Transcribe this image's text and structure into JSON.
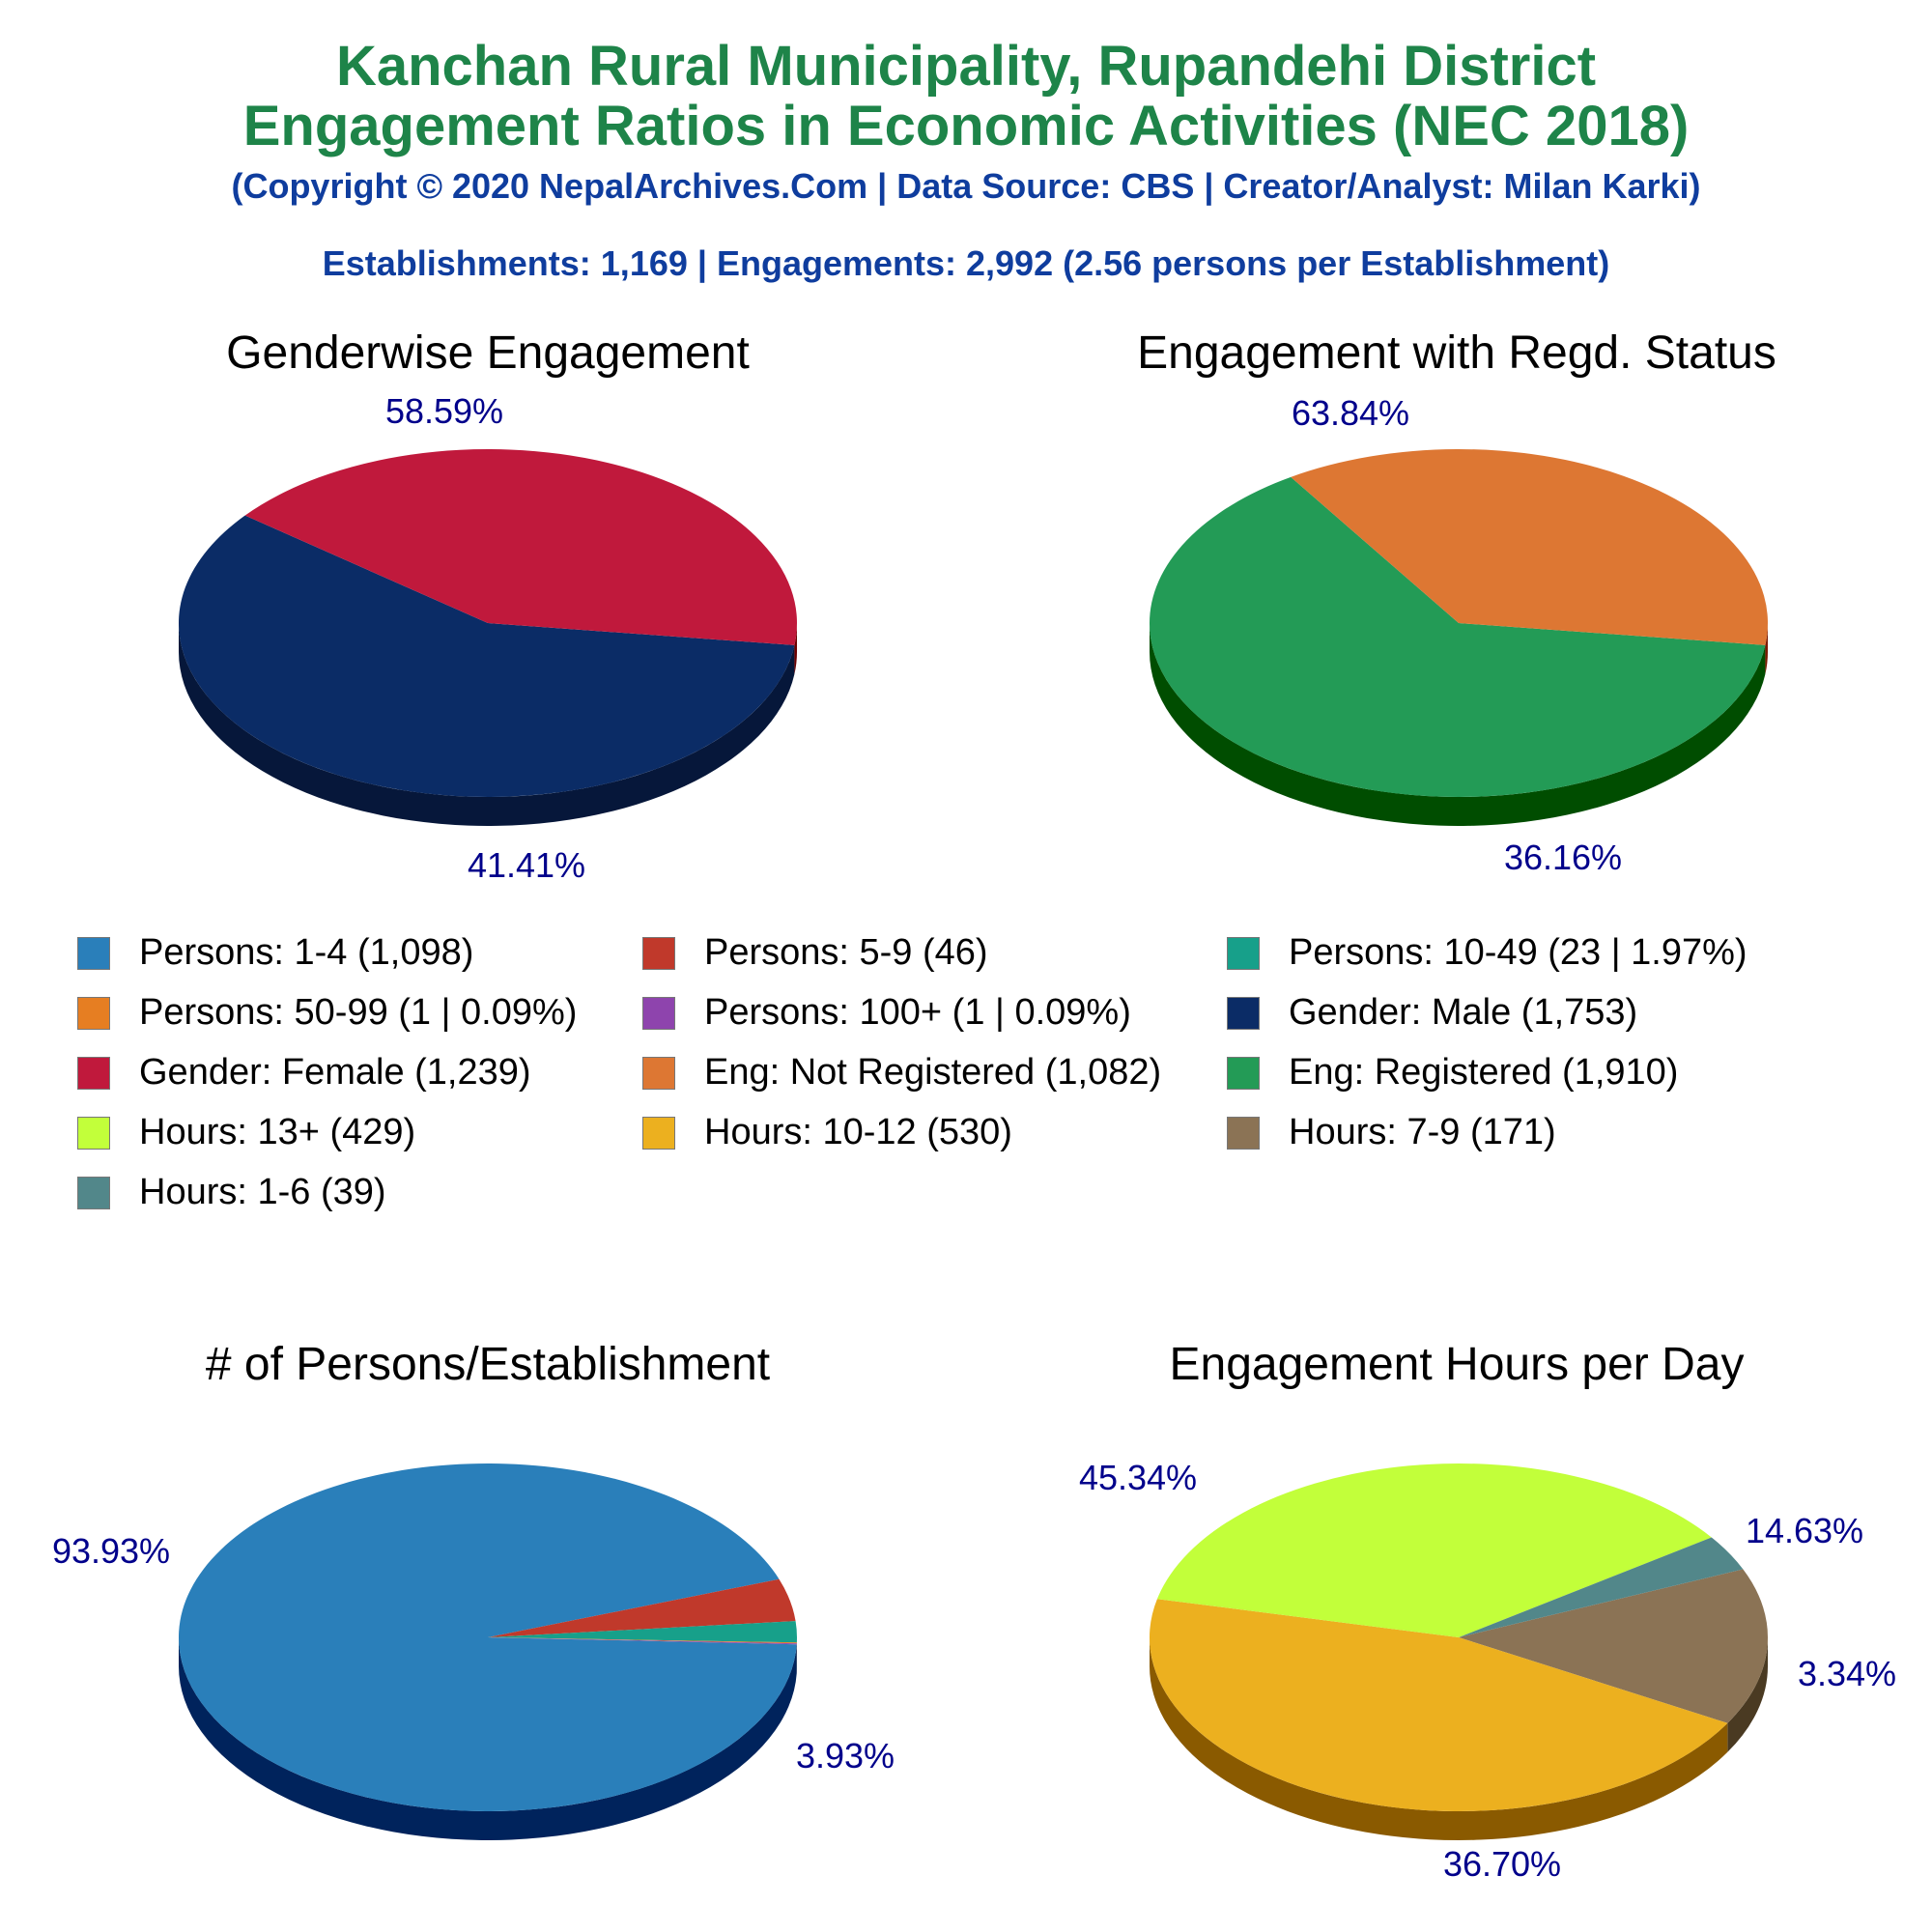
{
  "header": {
    "title_line1": "Kanchan Rural Municipality, Rupandehi District",
    "title_line2": "Engagement Ratios in Economic Activities (NEC 2018)",
    "copyright": "(Copyright © 2020 NepalArchives.Com | Data Source: CBS | Creator/Analyst: Milan Karki)",
    "summary": "Establishments: 1,169 | Engagements: 2,992 (2.56 persons per Establishment)"
  },
  "legend": [
    {
      "label": "Persons: 1-4 (1,098)",
      "color": "#2a7fba"
    },
    {
      "label": "Persons: 5-9 (46)",
      "color": "#c0392b"
    },
    {
      "label": "Persons: 10-49 (23 | 1.97%)",
      "color": "#17a08a"
    },
    {
      "label": "Persons: 50-99 (1 | 0.09%)",
      "color": "#e67e22"
    },
    {
      "label": "Persons: 100+ (1 | 0.09%)",
      "color": "#8e44ad"
    },
    {
      "label": "Gender: Male (1,753)",
      "color": "#0b2c66"
    },
    {
      "label": "Gender: Female (1,239)",
      "color": "#c0193c"
    },
    {
      "label": "Eng: Not Registered (1,082)",
      "color": "#dd7733"
    },
    {
      "label": "Eng: Registered (1,910)",
      "color": "#239b56"
    },
    {
      "label": "Hours: 13+ (429)",
      "color": "#c2ff3a"
    },
    {
      "label": "Hours: 10-12 (530)",
      "color": "#ecb01f"
    },
    {
      "label": "Hours: 7-9 (171)",
      "color": "#8b7355"
    },
    {
      "label": "Hours: 1-6 (39)",
      "color": "#52878a"
    }
  ],
  "chart_data": [
    {
      "type": "pie",
      "title": "Genderwise Engagement",
      "slices": [
        {
          "label": "Gender: Male",
          "value": 1753,
          "pct_label": "58.59%",
          "color": "#0b2c66",
          "side": "#06173a"
        },
        {
          "label": "Gender: Female",
          "value": 1239,
          "pct_label": "41.41%",
          "color": "#c0193c",
          "side": "#6b0000"
        }
      ]
    },
    {
      "type": "pie",
      "title": "Engagement with Regd. Status",
      "slices": [
        {
          "label": "Eng: Registered",
          "value": 1910,
          "pct_label": "63.84%",
          "color": "#239b56",
          "side": "#004d00"
        },
        {
          "label": "Eng: Not Registered",
          "value": 1082,
          "pct_label": "36.16%",
          "color": "#dd7733",
          "side": "#7a1a00"
        }
      ]
    },
    {
      "type": "pie",
      "title": "# of Persons/Establishment",
      "slices": [
        {
          "label": "Persons: 1-4",
          "value": 1098,
          "pct_label": "93.93%",
          "color": "#2a7fba",
          "side": "#00235c"
        },
        {
          "label": "Persons: 5-9",
          "value": 46,
          "pct_label": "3.93%",
          "color": "#c0392b",
          "side": "#6b0000"
        },
        {
          "label": "Persons: 10-49",
          "value": 23,
          "pct_label": "",
          "color": "#17a08a",
          "side": "#004d3d"
        },
        {
          "label": "Persons: 50-99",
          "value": 1,
          "pct_label": "",
          "color": "#e67e22",
          "side": "#7a3a00"
        },
        {
          "label": "Persons: 100+",
          "value": 1,
          "pct_label": "",
          "color": "#8e44ad",
          "side": "#3d0f55"
        }
      ]
    },
    {
      "type": "pie",
      "title": "Engagement Hours per Day",
      "slices": [
        {
          "label": "Hours: 7-9",
          "value": 171,
          "pct_label": "14.63%",
          "color": "#8b7355",
          "side": "#4a3a22"
        },
        {
          "label": "Hours: 10-12",
          "value": 530,
          "pct_label": "45.34%",
          "color": "#ecb01f",
          "side": "#8a5a00"
        },
        {
          "label": "Hours: 13+",
          "value": 429,
          "pct_label": "36.70%",
          "color": "#c2ff3a",
          "side": "#66a000"
        },
        {
          "label": "Hours: 1-6",
          "value": 39,
          "pct_label": "3.34%",
          "color": "#52878a",
          "side": "#1f4345"
        }
      ]
    }
  ]
}
